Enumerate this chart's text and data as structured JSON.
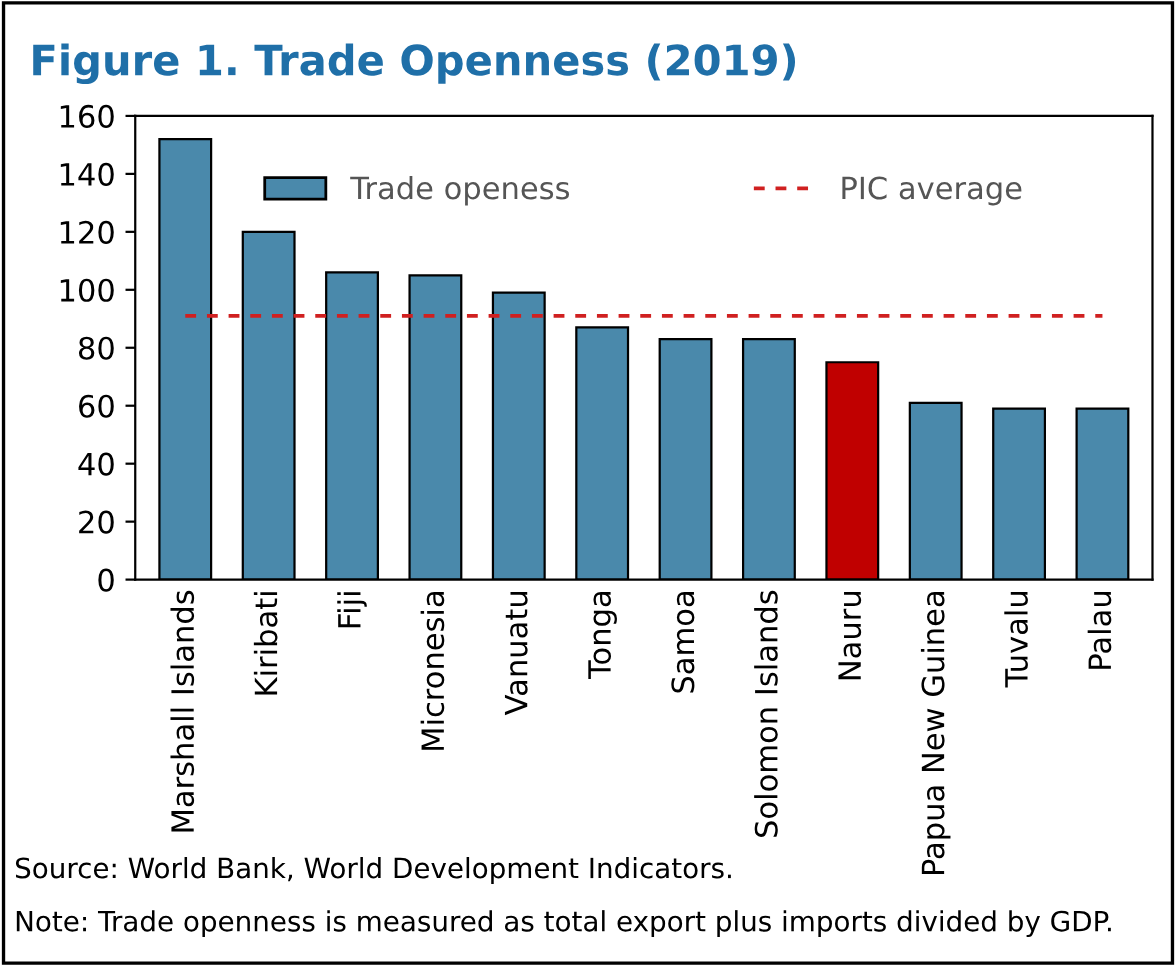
{
  "chart_data": {
    "type": "bar",
    "title": "Figure 1. Trade Openness (2019)",
    "categories": [
      "Marshall Islands",
      "Kiribati",
      "Fiji",
      "Micronesia",
      "Vanuatu",
      "Tonga",
      "Samoa",
      "Solomon Islands",
      "Nauru",
      "Papua New Guinea",
      "Tuvalu",
      "Palau"
    ],
    "series": [
      {
        "name": "Trade openess",
        "color": "#4a89ab",
        "colors": [
          "#4a89ab",
          "#4a89ab",
          "#4a89ab",
          "#4a89ab",
          "#4a89ab",
          "#4a89ab",
          "#4a89ab",
          "#4a89ab",
          "#c00000",
          "#4a89ab",
          "#4a89ab",
          "#4a89ab"
        ],
        "values": [
          152,
          120,
          106,
          105,
          99,
          87,
          83,
          83,
          75,
          61,
          59,
          59
        ]
      }
    ],
    "ref_lines": [
      {
        "axis": "y",
        "value": 91,
        "label": "PIC average",
        "color": "#d02020",
        "line_style": "dashed"
      }
    ],
    "ylim": [
      0,
      160
    ],
    "yticks": [
      0,
      20,
      40,
      60,
      80,
      100,
      120,
      140,
      160
    ],
    "grid": false,
    "legend": "top",
    "annotations": [
      "Source: World Bank, World Development Indicators.",
      "Note: Trade openness is measured as total export plus imports divided by GDP."
    ]
  }
}
